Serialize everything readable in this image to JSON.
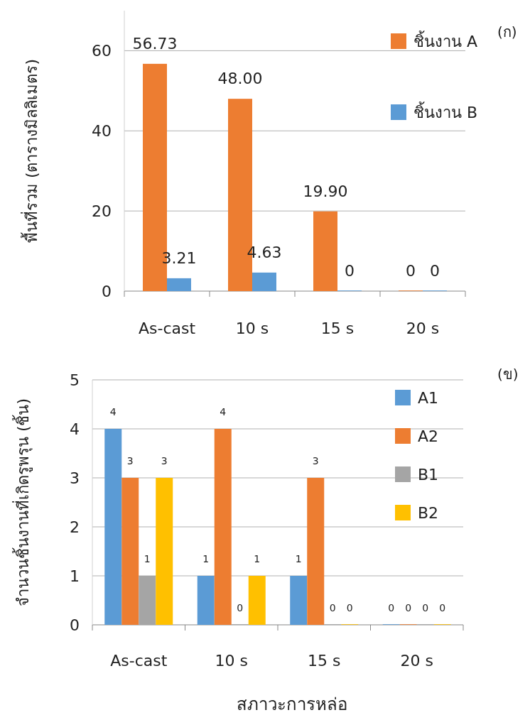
{
  "chart_data": [
    {
      "type": "bar",
      "categories": [
        "As-cast",
        "10 s",
        "15 s",
        "20 s"
      ],
      "ylabel": "พื้นที่รวม (ตารางมิลลิเมตร)",
      "annotations": [
        "(ก)"
      ],
      "ylim": [
        0,
        70
      ],
      "yticks": [
        0,
        20,
        40,
        60
      ],
      "grid": "y",
      "legend": "top right",
      "series": [
        {
          "name": "ชิ้นงาน A",
          "color": "#ed7d31",
          "values": [
            56.73,
            48.0,
            19.9,
            0
          ],
          "value_labels": [
            "56.73",
            "48.00",
            "19.90",
            "0"
          ]
        },
        {
          "name": "ชิ้นงาน B",
          "color": "#5b9bd5",
          "values": [
            3.21,
            4.63,
            0,
            0
          ],
          "value_labels": [
            "3.21",
            "4.63",
            "0",
            "0"
          ]
        }
      ]
    },
    {
      "type": "bar",
      "categories": [
        "As-cast",
        "10 s",
        "15 s",
        "20 s"
      ],
      "xlabel": "สภาวะการหล่อ",
      "ylabel": "จำนวนชิ้นงานที่เกิดรูพรุน (ชิ้น)",
      "annotations": [
        "(ข)"
      ],
      "ylim": [
        0,
        5
      ],
      "yticks": [
        0,
        1,
        2,
        3,
        4,
        5
      ],
      "grid": "y",
      "legend": "top right",
      "data_labels": true,
      "series": [
        {
          "name": "A1",
          "color": "#5b9bd5",
          "values": [
            4,
            1,
            1,
            0
          ]
        },
        {
          "name": "A2",
          "color": "#ed7d31",
          "values": [
            3,
            4,
            3,
            0
          ]
        },
        {
          "name": "B1",
          "color": "#a5a5a5",
          "values": [
            1,
            0,
            0,
            0
          ]
        },
        {
          "name": "B2",
          "color": "#ffc000",
          "values": [
            3,
            1,
            0,
            0
          ]
        }
      ]
    }
  ]
}
